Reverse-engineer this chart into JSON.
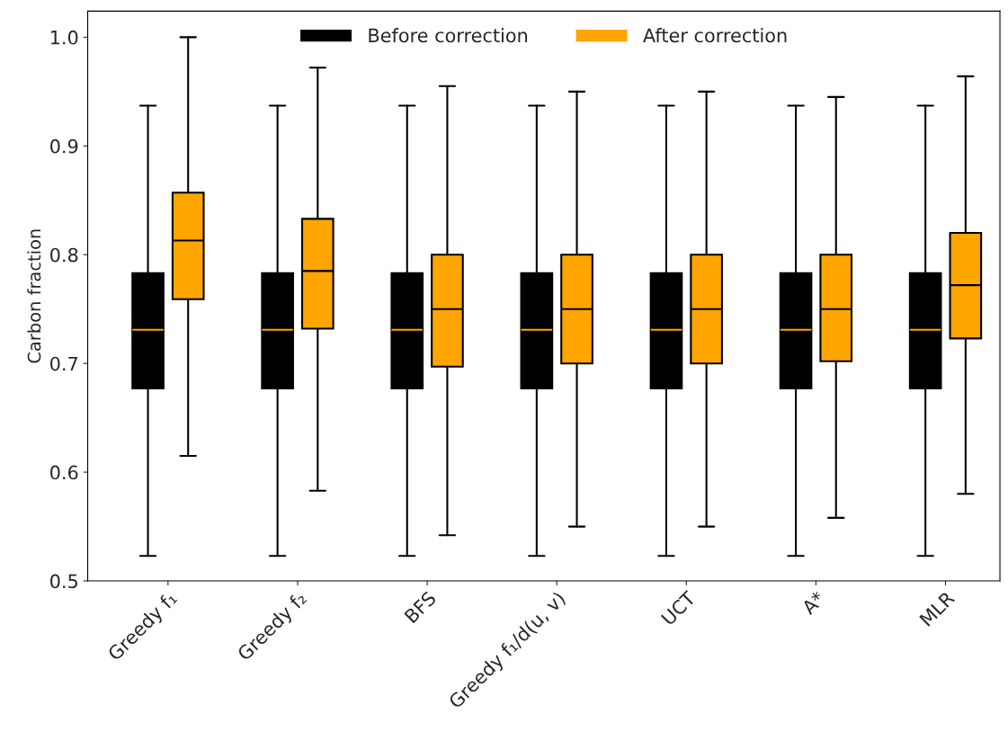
{
  "chart_data": {
    "type": "box",
    "ylabel": "Carbon fraction",
    "categories": [
      "Greedy f₁",
      "Greedy f₂",
      "BFS",
      "Greedy f₁/d(u, v)",
      "UCT",
      "A*",
      "MLR"
    ],
    "series": [
      {
        "name": "Before correction",
        "color": "#000000",
        "boxes": [
          {
            "low": 0.523,
            "q1": 0.677,
            "median": 0.731,
            "q3": 0.783,
            "high": 0.937
          },
          {
            "low": 0.523,
            "q1": 0.677,
            "median": 0.731,
            "q3": 0.783,
            "high": 0.937
          },
          {
            "low": 0.523,
            "q1": 0.677,
            "median": 0.731,
            "q3": 0.783,
            "high": 0.937
          },
          {
            "low": 0.523,
            "q1": 0.677,
            "median": 0.731,
            "q3": 0.783,
            "high": 0.937
          },
          {
            "low": 0.523,
            "q1": 0.677,
            "median": 0.731,
            "q3": 0.783,
            "high": 0.937
          },
          {
            "low": 0.523,
            "q1": 0.677,
            "median": 0.731,
            "q3": 0.783,
            "high": 0.937
          },
          {
            "low": 0.523,
            "q1": 0.677,
            "median": 0.731,
            "q3": 0.783,
            "high": 0.937
          }
        ]
      },
      {
        "name": "After correction",
        "color": "#ffa500",
        "boxes": [
          {
            "low": 0.615,
            "q1": 0.759,
            "median": 0.813,
            "q3": 0.857,
            "high": 1.0
          },
          {
            "low": 0.583,
            "q1": 0.732,
            "median": 0.785,
            "q3": 0.833,
            "high": 0.972
          },
          {
            "low": 0.542,
            "q1": 0.697,
            "median": 0.75,
            "q3": 0.8,
            "high": 0.955
          },
          {
            "low": 0.55,
            "q1": 0.7,
            "median": 0.75,
            "q3": 0.8,
            "high": 0.95
          },
          {
            "low": 0.55,
            "q1": 0.7,
            "median": 0.75,
            "q3": 0.8,
            "high": 0.95
          },
          {
            "low": 0.558,
            "q1": 0.702,
            "median": 0.75,
            "q3": 0.8,
            "high": 0.945
          },
          {
            "low": 0.58,
            "q1": 0.723,
            "median": 0.772,
            "q3": 0.82,
            "high": 0.964
          }
        ]
      }
    ],
    "ylim": [
      0.5,
      1.024
    ],
    "yticks": [
      0.5,
      0.6,
      0.7,
      0.8,
      0.9,
      {
        "value": 1.0,
        "label": "1.0"
      }
    ],
    "legend": "top",
    "grid": false
  }
}
